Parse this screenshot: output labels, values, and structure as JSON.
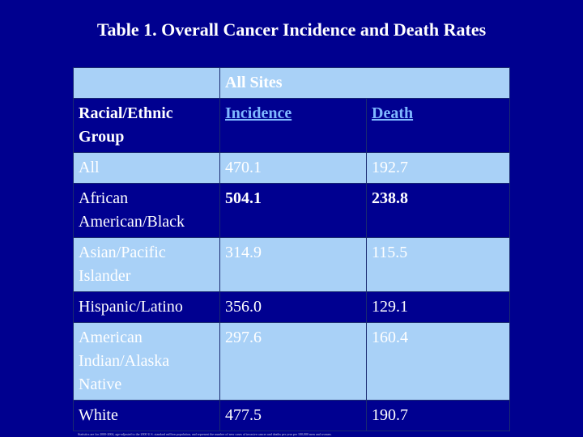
{
  "title": "Table 1. Overall Cancer Incidence and Death Rates",
  "table": {
    "group_header": "All Sites",
    "col_headers": [
      "Racial/Ethnic Group",
      "Incidence",
      "Death"
    ],
    "rows": [
      {
        "group": "All",
        "incidence": "470.1",
        "death": "192.7"
      },
      {
        "group": "African American/Black",
        "incidence": "504.1",
        "death": "238.8"
      },
      {
        "group": "Asian/Pacific Islander",
        "incidence": "314.9",
        "death": "115.5"
      },
      {
        "group": "Hispanic/Latino",
        "incidence": "356.0",
        "death": "129.1"
      },
      {
        "group": "American Indian/Alaska Native",
        "incidence": "297.6",
        "death": "160.4"
      },
      {
        "group": "White",
        "incidence": "477.5",
        "death": "190.7"
      }
    ]
  },
  "footnote": "Statistics are for 2000-2004, age-adjusted to the 2000 U.S. standard million population, and represent the number of new cases of invasive cancer and deaths per year per 100,000 men and women."
}
